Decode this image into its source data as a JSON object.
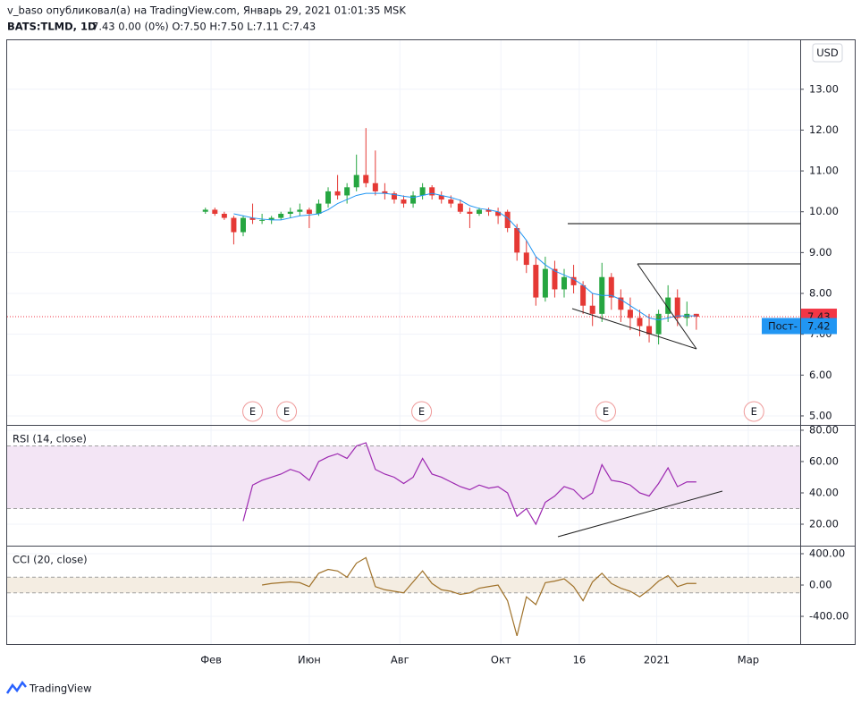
{
  "header": {
    "line1": "v_baso опубликовал(а) на TradingView.com, Январь 29, 2021 01:01:35 MSK",
    "symbol": "BATS:TLMD, 1D",
    "quote": "7.43 0.00 (0%) O:7.50 H:7.50 L:7.11 C:7.43",
    "currency": "USD",
    "brand": "TradingView"
  },
  "chart_data": [
    {
      "type": "candlestick",
      "xlim": [
        -21,
        63
      ],
      "xticks": [
        {
          "value": 0.6,
          "label": "Фев"
        },
        {
          "value": 11,
          "label": "Июн"
        },
        {
          "value": 20.6,
          "label": "Авг"
        },
        {
          "value": 31.3,
          "label": "Окт"
        },
        {
          "value": 39.6,
          "label": "16"
        },
        {
          "value": 47.8,
          "label": "2021"
        },
        {
          "value": 57.5,
          "label": "Мар"
        }
      ],
      "ylim": [
        4.78,
        14.2
      ],
      "yticks": [
        {
          "value": 5,
          "label": "5.00"
        },
        {
          "value": 6,
          "label": "6.00"
        },
        {
          "value": 7,
          "label": "7.00"
        },
        {
          "value": 8,
          "label": "8.00"
        },
        {
          "value": 9,
          "label": "9.00"
        },
        {
          "value": 10,
          "label": "10.00"
        },
        {
          "value": 11,
          "label": "11.00"
        },
        {
          "value": 12,
          "label": "12.00"
        },
        {
          "value": 13,
          "label": "13.00"
        }
      ],
      "up_color": "#26a641",
      "down_color": "#e53935",
      "ma_color": "#2196f3",
      "open": [
        10.0,
        10.05,
        9.95,
        9.85,
        9.5,
        9.85,
        9.8,
        9.8,
        9.85,
        9.95,
        10.0,
        10.05,
        9.95,
        10.2,
        10.5,
        10.4,
        10.6,
        10.9,
        10.7,
        10.5,
        10.45,
        10.3,
        10.2,
        10.4,
        10.6,
        10.4,
        10.3,
        10.2,
        10.0,
        9.95,
        10.05,
        10.0,
        10.0,
        9.6,
        9.0,
        8.7,
        7.9,
        8.6,
        8.1,
        8.4,
        8.2,
        7.7,
        7.5,
        8.4,
        7.9,
        7.6,
        7.4,
        7.2,
        7.0,
        7.5,
        7.9,
        7.4,
        7.5
      ],
      "high": [
        10.1,
        10.1,
        10.0,
        9.9,
        9.9,
        10.2,
        9.95,
        9.9,
        10.0,
        10.1,
        10.2,
        10.1,
        10.3,
        10.6,
        10.9,
        10.7,
        11.4,
        12.05,
        11.5,
        10.7,
        10.5,
        10.4,
        10.5,
        10.7,
        10.65,
        10.5,
        10.4,
        10.3,
        10.1,
        10.1,
        10.1,
        10.1,
        10.05,
        9.7,
        9.3,
        8.9,
        8.9,
        8.8,
        8.6,
        8.7,
        8.3,
        8.0,
        8.75,
        8.5,
        8.1,
        7.9,
        7.6,
        7.5,
        7.6,
        8.2,
        8.1,
        7.8,
        7.5
      ],
      "low": [
        9.95,
        9.9,
        9.8,
        9.2,
        9.4,
        9.7,
        9.7,
        9.7,
        9.8,
        9.85,
        9.9,
        9.6,
        9.9,
        10.1,
        10.3,
        10.2,
        10.5,
        10.6,
        10.4,
        10.3,
        10.2,
        10.1,
        10.1,
        10.3,
        10.3,
        10.2,
        10.1,
        9.95,
        9.6,
        9.9,
        9.9,
        9.7,
        9.5,
        8.8,
        8.5,
        7.7,
        7.8,
        7.9,
        7.9,
        8.0,
        7.5,
        7.2,
        7.3,
        7.6,
        7.3,
        7.1,
        6.95,
        6.8,
        6.75,
        7.3,
        7.2,
        7.2,
        7.11
      ],
      "close": [
        10.05,
        9.95,
        9.85,
        9.5,
        9.85,
        9.8,
        9.8,
        9.85,
        9.95,
        10.0,
        10.05,
        9.95,
        10.2,
        10.5,
        10.4,
        10.6,
        10.9,
        10.7,
        10.5,
        10.45,
        10.3,
        10.2,
        10.4,
        10.6,
        10.4,
        10.3,
        10.2,
        10.0,
        9.95,
        10.05,
        10.0,
        9.9,
        9.6,
        9.0,
        8.7,
        7.9,
        8.6,
        8.1,
        8.4,
        8.2,
        7.7,
        7.5,
        8.4,
        7.9,
        7.6,
        7.4,
        7.2,
        7.0,
        7.5,
        7.9,
        7.4,
        7.5,
        7.43
      ],
      "ma": [
        null,
        null,
        null,
        9.95,
        9.9,
        9.85,
        9.82,
        9.8,
        9.8,
        9.85,
        9.9,
        9.92,
        9.95,
        10.05,
        10.2,
        10.3,
        10.4,
        10.45,
        10.45,
        10.45,
        10.42,
        10.38,
        10.35,
        10.4,
        10.45,
        10.4,
        10.35,
        10.28,
        10.15,
        10.08,
        10.05,
        10.0,
        9.85,
        9.6,
        9.3,
        8.9,
        8.7,
        8.55,
        8.45,
        8.35,
        8.2,
        8.0,
        7.95,
        7.95,
        7.85,
        7.7,
        7.55,
        7.4,
        7.35,
        7.4,
        7.45,
        7.45,
        7.45
      ],
      "last_price": 7.43,
      "last_color": "#f23645",
      "post_label": "Пост-",
      "post_price": 7.42,
      "post_color": "#2196f3",
      "earnings_x": [
        5,
        8.6,
        22.9,
        42.4,
        58.1
      ],
      "earnings_label": "E"
    },
    {
      "type": "line",
      "title": "RSI (14, close)",
      "color": "#9c27b0",
      "band": [
        30,
        70
      ],
      "band_color": "#f3e5f5",
      "ylim": [
        6.3,
        83.4
      ],
      "yticks": [
        {
          "value": 20,
          "label": "20.00"
        },
        {
          "value": 40,
          "label": "40.00"
        },
        {
          "value": 60,
          "label": "60.00"
        },
        {
          "value": 80,
          "label": "80.00"
        }
      ],
      "values": [
        null,
        null,
        null,
        null,
        22,
        45,
        48,
        50,
        52,
        55,
        53,
        48,
        60,
        63,
        65,
        62,
        70,
        72,
        55,
        52,
        50,
        46,
        50,
        62,
        52,
        50,
        47,
        44,
        42,
        45,
        43,
        44,
        40,
        25,
        30,
        20,
        34,
        38,
        44,
        42,
        36,
        40,
        58,
        48,
        47,
        45,
        40,
        38,
        46,
        56,
        44,
        47,
        47
      ]
    },
    {
      "type": "line",
      "title": "CCI (20, close)",
      "color": "#a0722a",
      "band": [
        -100,
        100
      ],
      "band_color": "#f4ede2",
      "ylim": [
        -754,
        503
      ],
      "yticks": [
        {
          "value": -400,
          "label": "-400.00"
        },
        {
          "value": 0,
          "label": "0.00"
        },
        {
          "value": 400,
          "label": "400.00"
        }
      ],
      "values": [
        null,
        null,
        null,
        null,
        null,
        null,
        0,
        20,
        30,
        40,
        30,
        -20,
        150,
        200,
        180,
        100,
        280,
        350,
        -20,
        -60,
        -80,
        -100,
        40,
        180,
        20,
        -60,
        -80,
        -120,
        -100,
        -40,
        -20,
        0,
        -200,
        -650,
        -150,
        -250,
        30,
        50,
        80,
        -20,
        -200,
        40,
        150,
        20,
        -40,
        -80,
        -150,
        -60,
        50,
        120,
        -20,
        20,
        20
      ]
    }
  ]
}
